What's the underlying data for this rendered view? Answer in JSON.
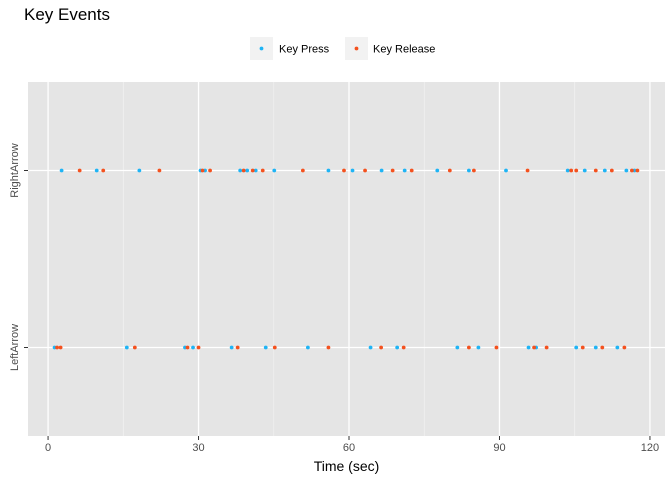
{
  "chart_data": {
    "type": "scatter",
    "title": "Key Events",
    "xlabel": "Time (sec)",
    "ylabel": "",
    "xlim": [
      -4,
      123
    ],
    "x_ticks": [
      0,
      30,
      60,
      90,
      120
    ],
    "categories": [
      "LeftArrow",
      "RightArrow"
    ],
    "grid": true,
    "legend_position": "top",
    "series": [
      {
        "name": "Key Press",
        "color": "#1fb4f5",
        "points": [
          {
            "x": 1.3,
            "y": "LeftArrow"
          },
          {
            "x": 15.7,
            "y": "LeftArrow"
          },
          {
            "x": 27.3,
            "y": "LeftArrow"
          },
          {
            "x": 28.9,
            "y": "LeftArrow"
          },
          {
            "x": 36.6,
            "y": "LeftArrow"
          },
          {
            "x": 43.4,
            "y": "LeftArrow"
          },
          {
            "x": 51.8,
            "y": "LeftArrow"
          },
          {
            "x": 64.3,
            "y": "LeftArrow"
          },
          {
            "x": 69.6,
            "y": "LeftArrow"
          },
          {
            "x": 81.6,
            "y": "LeftArrow"
          },
          {
            "x": 85.8,
            "y": "LeftArrow"
          },
          {
            "x": 95.8,
            "y": "LeftArrow"
          },
          {
            "x": 97.3,
            "y": "LeftArrow"
          },
          {
            "x": 105.3,
            "y": "LeftArrow"
          },
          {
            "x": 109.2,
            "y": "LeftArrow"
          },
          {
            "x": 113.5,
            "y": "LeftArrow"
          },
          {
            "x": 2.7,
            "y": "RightArrow"
          },
          {
            "x": 9.7,
            "y": "RightArrow"
          },
          {
            "x": 18.2,
            "y": "RightArrow"
          },
          {
            "x": 30.4,
            "y": "RightArrow"
          },
          {
            "x": 31.3,
            "y": "RightArrow"
          },
          {
            "x": 38.3,
            "y": "RightArrow"
          },
          {
            "x": 39.7,
            "y": "RightArrow"
          },
          {
            "x": 41.4,
            "y": "RightArrow"
          },
          {
            "x": 45.1,
            "y": "RightArrow"
          },
          {
            "x": 55.9,
            "y": "RightArrow"
          },
          {
            "x": 60.7,
            "y": "RightArrow"
          },
          {
            "x": 66.5,
            "y": "RightArrow"
          },
          {
            "x": 71.1,
            "y": "RightArrow"
          },
          {
            "x": 77.6,
            "y": "RightArrow"
          },
          {
            "x": 83.9,
            "y": "RightArrow"
          },
          {
            "x": 91.3,
            "y": "RightArrow"
          },
          {
            "x": 103.6,
            "y": "RightArrow"
          },
          {
            "x": 107.0,
            "y": "RightArrow"
          },
          {
            "x": 111.0,
            "y": "RightArrow"
          },
          {
            "x": 115.3,
            "y": "RightArrow"
          },
          {
            "x": 116.9,
            "y": "RightArrow"
          }
        ]
      },
      {
        "name": "Key Release",
        "color": "#f4511e",
        "points": [
          {
            "x": 1.8,
            "y": "LeftArrow"
          },
          {
            "x": 2.5,
            "y": "LeftArrow"
          },
          {
            "x": 17.3,
            "y": "LeftArrow"
          },
          {
            "x": 27.8,
            "y": "LeftArrow"
          },
          {
            "x": 30.0,
            "y": "LeftArrow"
          },
          {
            "x": 37.8,
            "y": "LeftArrow"
          },
          {
            "x": 45.2,
            "y": "LeftArrow"
          },
          {
            "x": 55.9,
            "y": "LeftArrow"
          },
          {
            "x": 66.4,
            "y": "LeftArrow"
          },
          {
            "x": 70.9,
            "y": "LeftArrow"
          },
          {
            "x": 83.9,
            "y": "LeftArrow"
          },
          {
            "x": 89.4,
            "y": "LeftArrow"
          },
          {
            "x": 96.9,
            "y": "LeftArrow"
          },
          {
            "x": 99.4,
            "y": "LeftArrow"
          },
          {
            "x": 106.6,
            "y": "LeftArrow"
          },
          {
            "x": 110.5,
            "y": "LeftArrow"
          },
          {
            "x": 114.9,
            "y": "LeftArrow"
          },
          {
            "x": 6.3,
            "y": "RightArrow"
          },
          {
            "x": 11.0,
            "y": "RightArrow"
          },
          {
            "x": 22.2,
            "y": "RightArrow"
          },
          {
            "x": 30.8,
            "y": "RightArrow"
          },
          {
            "x": 32.3,
            "y": "RightArrow"
          },
          {
            "x": 39.0,
            "y": "RightArrow"
          },
          {
            "x": 40.8,
            "y": "RightArrow"
          },
          {
            "x": 42.8,
            "y": "RightArrow"
          },
          {
            "x": 50.8,
            "y": "RightArrow"
          },
          {
            "x": 59.0,
            "y": "RightArrow"
          },
          {
            "x": 63.2,
            "y": "RightArrow"
          },
          {
            "x": 68.7,
            "y": "RightArrow"
          },
          {
            "x": 72.5,
            "y": "RightArrow"
          },
          {
            "x": 80.1,
            "y": "RightArrow"
          },
          {
            "x": 84.9,
            "y": "RightArrow"
          },
          {
            "x": 95.6,
            "y": "RightArrow"
          },
          {
            "x": 104.3,
            "y": "RightArrow"
          },
          {
            "x": 105.3,
            "y": "RightArrow"
          },
          {
            "x": 109.2,
            "y": "RightArrow"
          },
          {
            "x": 112.4,
            "y": "RightArrow"
          },
          {
            "x": 116.4,
            "y": "RightArrow"
          },
          {
            "x": 117.5,
            "y": "RightArrow"
          }
        ]
      }
    ]
  }
}
